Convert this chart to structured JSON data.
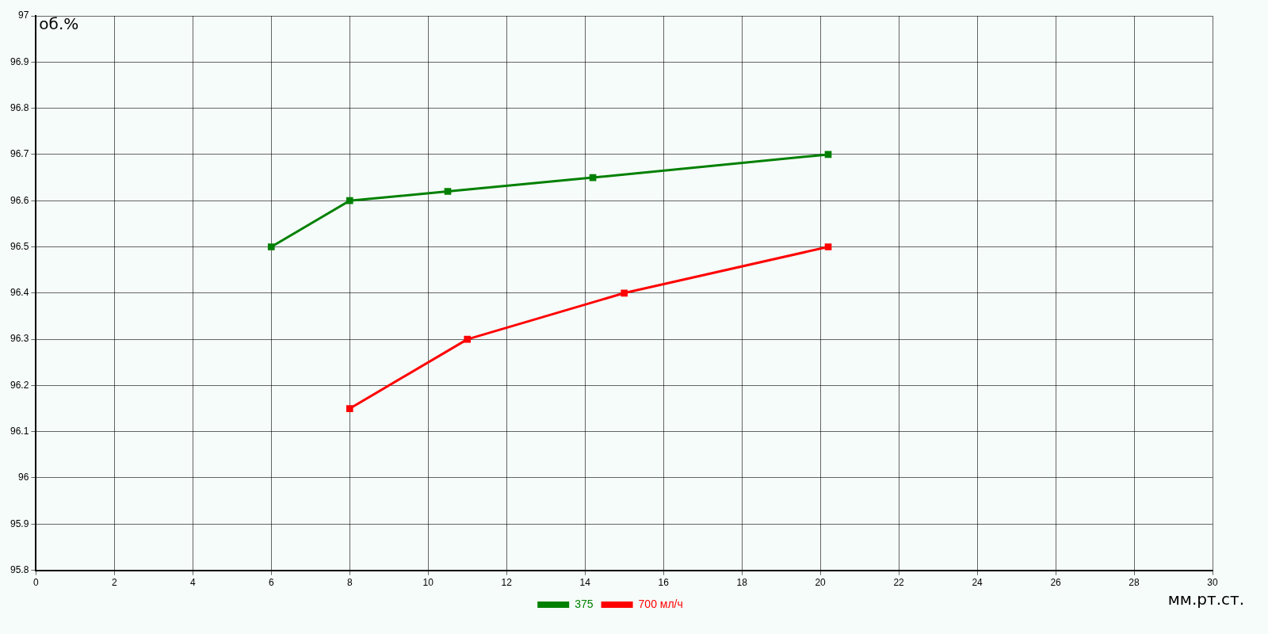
{
  "chart_data": {
    "type": "line",
    "xlabel": "мм.рт.ст.",
    "ylabel": "об.%",
    "series": [
      {
        "name": "375",
        "color": "#008000",
        "x": [
          6,
          8,
          10.5,
          14.2,
          20.2
        ],
        "values": [
          96.5,
          96.6,
          96.62,
          96.65,
          96.7
        ]
      },
      {
        "name": "700 мл/ч",
        "color": "#ff0000",
        "x": [
          8,
          11,
          15,
          20.2
        ],
        "values": [
          96.15,
          96.3,
          96.4,
          96.5
        ]
      }
    ],
    "xlim": [
      0,
      30
    ],
    "xticks": [
      0,
      2,
      4,
      6,
      8,
      10,
      12,
      14,
      16,
      18,
      20,
      22,
      24,
      26,
      28,
      30
    ],
    "ylim": [
      95.8,
      97
    ],
    "yticks": [
      95.8,
      95.9,
      96,
      96.1,
      96.2,
      96.3,
      96.4,
      96.5,
      96.6,
      96.7,
      96.8,
      96.9,
      97
    ],
    "grid": true,
    "legend": "bottom",
    "marker": "square",
    "line_style": "solid"
  }
}
